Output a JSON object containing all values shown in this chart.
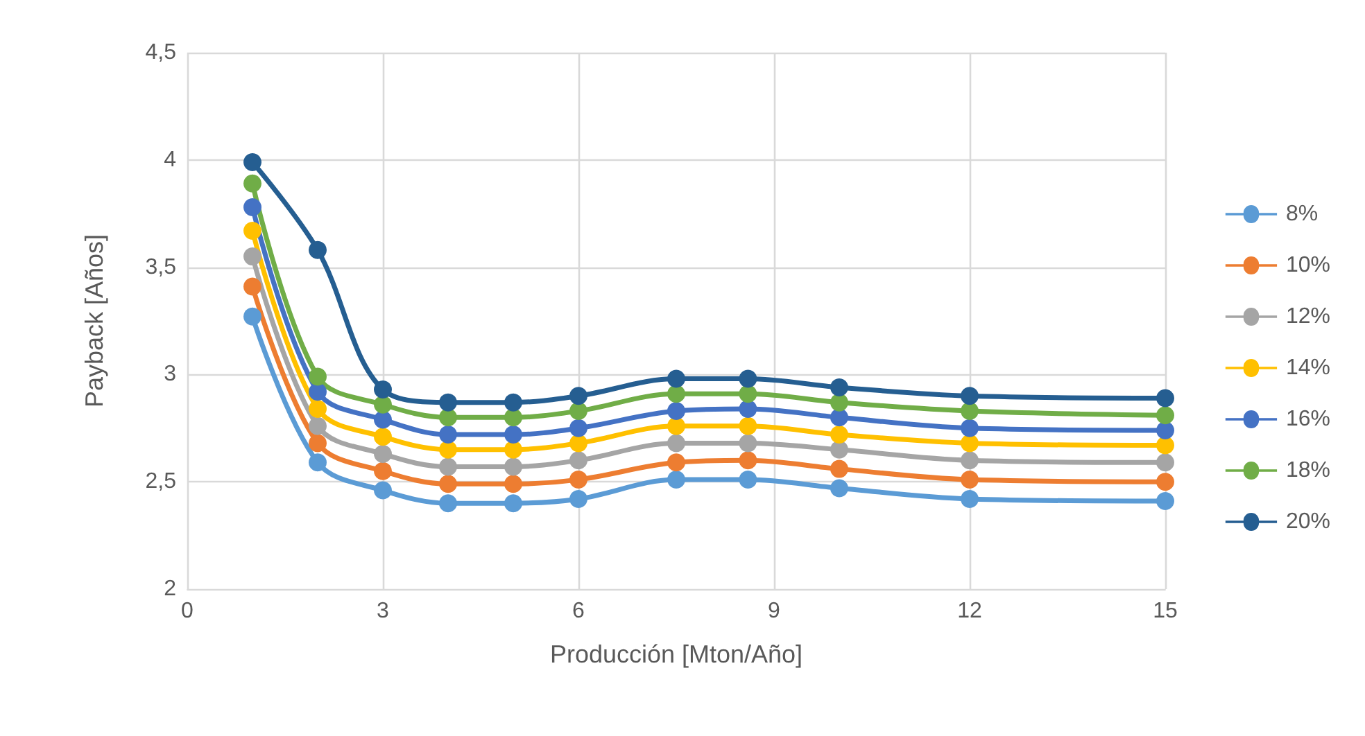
{
  "chart_data": {
    "type": "line",
    "xlabel": "Producción [Mton/Año]",
    "ylabel": "Payback [Años]",
    "x": [
      1,
      2,
      3,
      4,
      5,
      6,
      7.5,
      8.6,
      10,
      12,
      15
    ],
    "series": [
      {
        "name": "8%",
        "color": "#5b9bd5",
        "values": [
          3.27,
          2.59,
          2.46,
          2.4,
          2.4,
          2.42,
          2.51,
          2.51,
          2.47,
          2.42,
          2.41
        ]
      },
      {
        "name": "10%",
        "color": "#ed7d31",
        "values": [
          3.41,
          2.68,
          2.55,
          2.49,
          2.49,
          2.51,
          2.59,
          2.6,
          2.56,
          2.51,
          2.5
        ]
      },
      {
        "name": "12%",
        "color": "#a5a5a5",
        "values": [
          3.55,
          2.76,
          2.63,
          2.57,
          2.57,
          2.6,
          2.68,
          2.68,
          2.65,
          2.6,
          2.59
        ]
      },
      {
        "name": "14%",
        "color": "#ffc000",
        "values": [
          3.67,
          2.84,
          2.71,
          2.65,
          2.65,
          2.68,
          2.76,
          2.76,
          2.72,
          2.68,
          2.67
        ]
      },
      {
        "name": "16%",
        "color": "#4472c4",
        "values": [
          3.78,
          2.92,
          2.79,
          2.72,
          2.72,
          2.75,
          2.83,
          2.84,
          2.8,
          2.75,
          2.74
        ]
      },
      {
        "name": "18%",
        "color": "#70ad47",
        "values": [
          3.89,
          2.99,
          2.86,
          2.8,
          2.8,
          2.83,
          2.91,
          2.91,
          2.87,
          2.83,
          2.81
        ]
      },
      {
        "name": "20%",
        "color": "#255e91",
        "values": [
          3.99,
          3.58,
          2.93,
          2.87,
          2.87,
          2.9,
          2.98,
          2.98,
          2.94,
          2.9,
          2.89
        ]
      }
    ],
    "xlim": [
      0,
      15
    ],
    "xticks": [
      0,
      3,
      6,
      9,
      12,
      15
    ],
    "ylim": [
      2,
      4.5
    ],
    "yticks": [
      2,
      {
        "value": 2.5,
        "label": "2,5"
      },
      3,
      {
        "value": 3.5,
        "label": "3,5"
      },
      4,
      {
        "value": 4.5,
        "label": "4,5"
      }
    ],
    "grid": true,
    "legend": "right",
    "marker": "circle",
    "line_style": "solid"
  }
}
